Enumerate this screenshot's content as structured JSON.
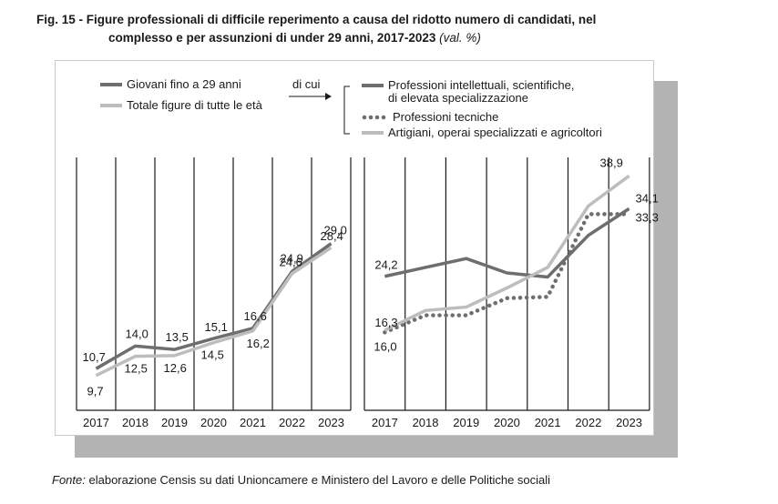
{
  "title": {
    "line1": "Fig. 15 - Figure professionali di difficile reperimento a causa del ridotto numero di candidati, nel",
    "line2": "complesso e per assunzioni di under 29 anni, 2017-2023",
    "unit": "(val. %)"
  },
  "source": {
    "label": "Fonte:",
    "text": "elaborazione Censis su dati Unioncamere e Ministero del Lavoro e delle Politiche sociali"
  },
  "legend": {
    "di_cui": "di cui"
  },
  "colors": {
    "dark": "#6e6e6e",
    "light": "#bdbdbd",
    "dots": "#6e6e6e",
    "shadow": "#b3b3b3"
  },
  "chart_data": [
    {
      "type": "line",
      "categories": [
        "2017",
        "2018",
        "2019",
        "2020",
        "2021",
        "2022",
        "2023"
      ],
      "series": [
        {
          "name": "Giovani fino a 29 anni",
          "style": "dark",
          "values": [
            10.7,
            14.0,
            13.5,
            15.1,
            16.6,
            24.9,
            29.0
          ]
        },
        {
          "name": "Totale figure di tutte le età",
          "style": "light",
          "values": [
            9.7,
            12.5,
            12.6,
            14.5,
            16.2,
            24.6,
            28.4
          ]
        }
      ],
      "labels": [
        {
          "series": 0,
          "index": 0,
          "text": "10,7"
        },
        {
          "series": 0,
          "index": 1,
          "text": "14,0"
        },
        {
          "series": 0,
          "index": 2,
          "text": "13,5"
        },
        {
          "series": 0,
          "index": 3,
          "text": "15,1"
        },
        {
          "series": 0,
          "index": 4,
          "text": "16,6"
        },
        {
          "series": 0,
          "index": 5,
          "text": "24,9"
        },
        {
          "series": 0,
          "index": 6,
          "text": "29,0"
        },
        {
          "series": 1,
          "index": 0,
          "text": "9,7"
        },
        {
          "series": 1,
          "index": 1,
          "text": "12,5"
        },
        {
          "series": 1,
          "index": 2,
          "text": "12,6"
        },
        {
          "series": 1,
          "index": 3,
          "text": "14,5"
        },
        {
          "series": 1,
          "index": 4,
          "text": "16,2"
        },
        {
          "series": 1,
          "index": 5,
          "text": "24,6"
        },
        {
          "series": 1,
          "index": 6,
          "text": "28,4"
        }
      ],
      "ylim": [
        5,
        42
      ],
      "grid": "vertical"
    },
    {
      "type": "line",
      "categories": [
        "2017",
        "2018",
        "2019",
        "2020",
        "2021",
        "2022",
        "2023"
      ],
      "series": [
        {
          "name": "Professioni intellettuali, scientifiche, di elevata specializzazione",
          "style": "dark",
          "values": [
            24.2,
            25.5,
            26.8,
            24.7,
            24.1,
            30.2,
            34.1
          ]
        },
        {
          "name": "Professioni tecniche",
          "style": "dots",
          "values": [
            16.0,
            18.5,
            18.5,
            21.0,
            21.2,
            33.3,
            33.3
          ]
        },
        {
          "name": "Artigiani, operai specializzati e agricoltori",
          "style": "light",
          "values": [
            16.3,
            19.2,
            19.7,
            22.5,
            25.5,
            34.5,
            38.9
          ]
        }
      ],
      "labels": [
        {
          "series": 0,
          "index": 0,
          "text": "24,2"
        },
        {
          "series": 0,
          "index": 6,
          "text": "34,1"
        },
        {
          "series": 1,
          "index": 0,
          "text": "16,0"
        },
        {
          "series": 1,
          "index": 6,
          "text": "33,3"
        },
        {
          "series": 2,
          "index": 0,
          "text": "16,3"
        },
        {
          "series": 2,
          "index": 6,
          "text": "38,9"
        }
      ],
      "ylim": [
        5,
        42
      ],
      "grid": "vertical"
    }
  ]
}
